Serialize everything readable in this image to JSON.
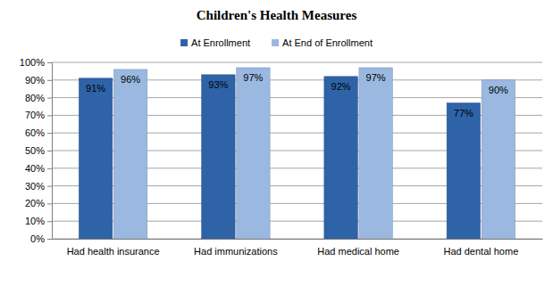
{
  "chart_data": {
    "type": "bar",
    "title": "Children's Health Measures",
    "categories": [
      "Had health insurance",
      "Had immunizations",
      "Had medical home",
      "Had dental home"
    ],
    "series": [
      {
        "name": "At Enrollment",
        "color": "#2f63a8",
        "values": [
          91,
          93,
          92,
          77
        ],
        "value_labels": [
          "91%",
          "93%",
          "92%",
          "77%"
        ]
      },
      {
        "name": "At End of Enrollment",
        "color": "#9ab8e0",
        "values": [
          96,
          97,
          97,
          90
        ],
        "value_labels": [
          "96%",
          "97%",
          "97%",
          "90%"
        ]
      }
    ],
    "ylim": [
      0,
      100
    ],
    "yticks": [
      {
        "value": 0,
        "label": "0%"
      },
      {
        "value": 10,
        "label": "10%"
      },
      {
        "value": 20,
        "label": "20%"
      },
      {
        "value": 30,
        "label": "30%"
      },
      {
        "value": 40,
        "label": "40%"
      },
      {
        "value": 50,
        "label": "50%"
      },
      {
        "value": 60,
        "label": "60%"
      },
      {
        "value": 70,
        "label": "70%"
      },
      {
        "value": 80,
        "label": "80%"
      },
      {
        "value": 90,
        "label": "90%"
      },
      {
        "value": 100,
        "label": "100%"
      }
    ],
    "grid": true,
    "legend": "top",
    "data_labels": true
  }
}
